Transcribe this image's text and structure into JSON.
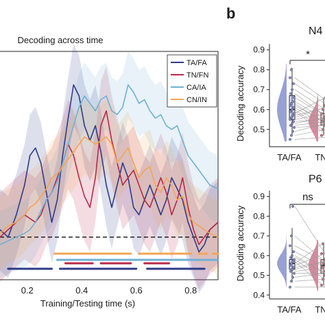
{
  "panel_label": "b",
  "chart_data": [
    {
      "type": "line",
      "title": "Decoding across time",
      "xlabel": "Training/Testing time (s)",
      "ylabel": "",
      "x_ticks": [
        "0.2",
        "0.4",
        "0.6",
        "0.8"
      ],
      "xlim": [
        0.1,
        0.9
      ],
      "ylim": [
        0.4,
        0.7
      ],
      "chance_level": 0.45,
      "legend_position": "top-right",
      "series": [
        {
          "name": "TA/FA",
          "color": "#2e3a87",
          "points": [
            [
              0.1,
              0.46
            ],
            [
              0.13,
              0.45
            ],
            [
              0.16,
              0.48
            ],
            [
              0.19,
              0.52
            ],
            [
              0.21,
              0.56
            ],
            [
              0.23,
              0.57
            ],
            [
              0.25,
              0.55
            ],
            [
              0.27,
              0.51
            ],
            [
              0.29,
              0.47
            ],
            [
              0.31,
              0.5
            ],
            [
              0.33,
              0.56
            ],
            [
              0.35,
              0.61
            ],
            [
              0.37,
              0.655
            ],
            [
              0.39,
              0.64
            ],
            [
              0.41,
              0.6
            ],
            [
              0.43,
              0.58
            ],
            [
              0.45,
              0.6
            ],
            [
              0.47,
              0.565
            ],
            [
              0.49,
              0.52
            ],
            [
              0.51,
              0.49
            ],
            [
              0.53,
              0.52
            ],
            [
              0.55,
              0.55
            ],
            [
              0.57,
              0.53
            ],
            [
              0.59,
              0.49
            ],
            [
              0.61,
              0.48
            ],
            [
              0.63,
              0.5
            ],
            [
              0.65,
              0.52
            ],
            [
              0.67,
              0.5
            ],
            [
              0.69,
              0.48
            ],
            [
              0.71,
              0.5
            ],
            [
              0.73,
              0.53
            ],
            [
              0.75,
              0.515
            ],
            [
              0.77,
              0.5
            ],
            [
              0.79,
              0.47
            ],
            [
              0.81,
              0.45
            ],
            [
              0.83,
              0.43
            ],
            [
              0.85,
              0.44
            ],
            [
              0.87,
              0.46
            ],
            [
              0.9,
              0.47
            ]
          ]
        },
        {
          "name": "TN/FN",
          "color": "#b82848",
          "points": [
            [
              0.1,
              0.45
            ],
            [
              0.13,
              0.46
            ],
            [
              0.16,
              0.47
            ],
            [
              0.19,
              0.48
            ],
            [
              0.21,
              0.475
            ],
            [
              0.23,
              0.47
            ],
            [
              0.25,
              0.48
            ],
            [
              0.27,
              0.5
            ],
            [
              0.29,
              0.51
            ],
            [
              0.31,
              0.53
            ],
            [
              0.33,
              0.55
            ],
            [
              0.35,
              0.575
            ],
            [
              0.37,
              0.56
            ],
            [
              0.39,
              0.53
            ],
            [
              0.41,
              0.505
            ],
            [
              0.43,
              0.49
            ],
            [
              0.45,
              0.53
            ],
            [
              0.47,
              0.6
            ],
            [
              0.49,
              0.62
            ],
            [
              0.51,
              0.58
            ],
            [
              0.53,
              0.55
            ],
            [
              0.55,
              0.52
            ],
            [
              0.57,
              0.53
            ],
            [
              0.59,
              0.54
            ],
            [
              0.61,
              0.52
            ],
            [
              0.63,
              0.5
            ],
            [
              0.65,
              0.49
            ],
            [
              0.67,
              0.51
            ],
            [
              0.69,
              0.53
            ],
            [
              0.71,
              0.51
            ],
            [
              0.73,
              0.48
            ],
            [
              0.75,
              0.5
            ],
            [
              0.77,
              0.53
            ],
            [
              0.79,
              0.49
            ],
            [
              0.81,
              0.46
            ],
            [
              0.83,
              0.44
            ],
            [
              0.85,
              0.45
            ],
            [
              0.87,
              0.46
            ],
            [
              0.9,
              0.47
            ]
          ]
        },
        {
          "name": "CA/IA",
          "color": "#6fb0d4",
          "points": [
            [
              0.1,
              0.44
            ],
            [
              0.13,
              0.445
            ],
            [
              0.16,
              0.45
            ],
            [
              0.19,
              0.455
            ],
            [
              0.21,
              0.46
            ],
            [
              0.23,
              0.47
            ],
            [
              0.25,
              0.485
            ],
            [
              0.27,
              0.5
            ],
            [
              0.29,
              0.51
            ],
            [
              0.31,
              0.525
            ],
            [
              0.33,
              0.55
            ],
            [
              0.35,
              0.575
            ],
            [
              0.37,
              0.6
            ],
            [
              0.39,
              0.625
            ],
            [
              0.41,
              0.64
            ],
            [
              0.43,
              0.63
            ],
            [
              0.45,
              0.62
            ],
            [
              0.47,
              0.635
            ],
            [
              0.49,
              0.64
            ],
            [
              0.51,
              0.62
            ],
            [
              0.53,
              0.615
            ],
            [
              0.55,
              0.625
            ],
            [
              0.57,
              0.655
            ],
            [
              0.59,
              0.645
            ],
            [
              0.61,
              0.63
            ],
            [
              0.63,
              0.635
            ],
            [
              0.65,
              0.62
            ],
            [
              0.67,
              0.61
            ],
            [
              0.69,
              0.615
            ],
            [
              0.71,
              0.6
            ],
            [
              0.73,
              0.595
            ],
            [
              0.75,
              0.6
            ],
            [
              0.77,
              0.58
            ],
            [
              0.79,
              0.56
            ],
            [
              0.81,
              0.55
            ],
            [
              0.83,
              0.54
            ],
            [
              0.85,
              0.53
            ],
            [
              0.87,
              0.52
            ],
            [
              0.9,
              0.515
            ]
          ]
        },
        {
          "name": "CN/IN",
          "color": "#f5a550",
          "points": [
            [
              0.1,
              0.455
            ],
            [
              0.13,
              0.465
            ],
            [
              0.16,
              0.47
            ],
            [
              0.19,
              0.48
            ],
            [
              0.21,
              0.49
            ],
            [
              0.23,
              0.495
            ],
            [
              0.25,
              0.505
            ],
            [
              0.27,
              0.515
            ],
            [
              0.29,
              0.53
            ],
            [
              0.31,
              0.535
            ],
            [
              0.33,
              0.545
            ],
            [
              0.35,
              0.555
            ],
            [
              0.37,
              0.565
            ],
            [
              0.39,
              0.575
            ],
            [
              0.41,
              0.585
            ],
            [
              0.43,
              0.58
            ],
            [
              0.45,
              0.575
            ],
            [
              0.47,
              0.58
            ],
            [
              0.49,
              0.585
            ],
            [
              0.51,
              0.575
            ],
            [
              0.53,
              0.55
            ],
            [
              0.55,
              0.56
            ],
            [
              0.57,
              0.57
            ],
            [
              0.59,
              0.55
            ],
            [
              0.61,
              0.53
            ],
            [
              0.63,
              0.54
            ],
            [
              0.65,
              0.545
            ],
            [
              0.67,
              0.52
            ],
            [
              0.69,
              0.51
            ],
            [
              0.71,
              0.53
            ],
            [
              0.73,
              0.52
            ],
            [
              0.75,
              0.5
            ],
            [
              0.77,
              0.505
            ],
            [
              0.79,
              0.48
            ],
            [
              0.81,
              0.47
            ],
            [
              0.83,
              0.465
            ],
            [
              0.85,
              0.46
            ],
            [
              0.87,
              0.455
            ],
            [
              0.9,
              0.45
            ]
          ]
        }
      ],
      "significance_bars": [
        {
          "series": "CN/IN",
          "color": "#f5a550",
          "segments": [
            [
              0.3,
              0.58
            ],
            [
              0.61,
              0.8
            ],
            [
              0.83,
              0.86
            ],
            [
              0.88,
              0.9
            ]
          ]
        },
        {
          "series": "CA/IA",
          "color": "#6fb0d4",
          "segments": [
            [
              0.31,
              0.9
            ]
          ]
        },
        {
          "series": "TN/FN",
          "color": "#b82848",
          "segments": [
            [
              0.34,
              0.44
            ],
            [
              0.47,
              0.58
            ],
            [
              0.63,
              0.72
            ]
          ]
        },
        {
          "series": "TA/FA",
          "color": "#2e3a87",
          "segments": [
            [
              0.13,
              0.29
            ],
            [
              0.32,
              0.6
            ],
            [
              0.64,
              0.85
            ]
          ]
        }
      ]
    },
    {
      "type": "violin",
      "title": "N4",
      "ylabel": "Decoding accuracy",
      "categories": [
        "TA/FA",
        "TN"
      ],
      "y_ticks": [
        "0.5",
        "0.6",
        "0.7",
        "0.8",
        "0.9"
      ],
      "ylim": [
        0.42,
        0.93
      ],
      "significance": "*",
      "groups": [
        {
          "label": "TA/FA",
          "color": "#8088c8",
          "median": 0.6,
          "q1": 0.55,
          "q3": 0.67,
          "whisker_low": 0.47,
          "whisker_high": 0.81,
          "points": [
            0.45,
            0.47,
            0.49,
            0.51,
            0.52,
            0.53,
            0.54,
            0.55,
            0.56,
            0.57,
            0.58,
            0.59,
            0.6,
            0.61,
            0.62,
            0.63,
            0.64,
            0.66,
            0.68,
            0.7,
            0.73,
            0.76,
            0.8
          ]
        },
        {
          "label": "TN",
          "color": "#cc6e86",
          "median": 0.54,
          "q1": 0.52,
          "q3": 0.58,
          "whisker_low": 0.47,
          "whisker_high": 0.66,
          "points": [
            0.47,
            0.5,
            0.52,
            0.53,
            0.54,
            0.55,
            0.56,
            0.58,
            0.6,
            0.62,
            0.66
          ]
        }
      ]
    },
    {
      "type": "violin",
      "title": "P6",
      "ylabel": "Decoding accuracy",
      "categories": [
        "TA/FA",
        "TN"
      ],
      "y_ticks": [
        "0.4",
        "0.5",
        "0.6",
        "0.7",
        "0.8",
        "0.9"
      ],
      "ylim": [
        0.38,
        0.93
      ],
      "significance": "ns",
      "groups": [
        {
          "label": "TA/FA",
          "color": "#8088c8",
          "median": 0.56,
          "q1": 0.53,
          "q3": 0.58,
          "whisker_low": 0.47,
          "whisker_high": 0.74,
          "points": [
            0.44,
            0.47,
            0.49,
            0.51,
            0.52,
            0.53,
            0.54,
            0.55,
            0.56,
            0.57,
            0.58,
            0.59,
            0.6,
            0.62,
            0.65,
            0.7,
            0.85
          ]
        },
        {
          "label": "TN",
          "color": "#cc6e86",
          "median": 0.55,
          "q1": 0.51,
          "q3": 0.58,
          "whisker_low": 0.45,
          "whisker_high": 0.66,
          "points": [
            0.45,
            0.48,
            0.5,
            0.52,
            0.54,
            0.56,
            0.58,
            0.61,
            0.66
          ]
        }
      ]
    }
  ]
}
